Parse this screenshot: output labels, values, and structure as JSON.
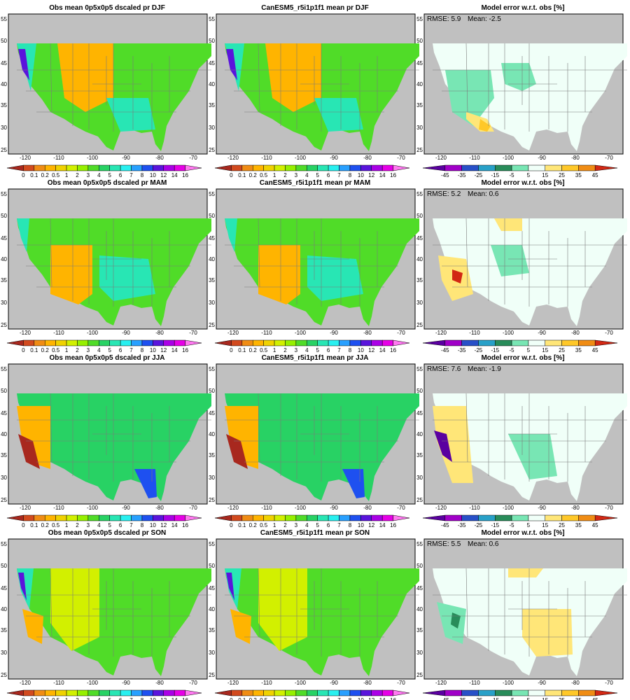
{
  "rows": [
    {
      "season": "DJF",
      "titles": [
        "Obs mean 0p5x0p5 dscaled pr DJF",
        "CanESM5_r5i1p1f1 mean pr DJF",
        "Model error w.r.t. obs [%]"
      ],
      "rmse_text": "RMSE: 5.9",
      "mean_text": "Mean: -2.5"
    },
    {
      "season": "MAM",
      "titles": [
        "Obs mean 0p5x0p5 dscaled pr MAM",
        "CanESM5_r5i1p1f1 mean pr MAM",
        "Model error w.r.t. obs [%]"
      ],
      "rmse_text": "RMSE: 5.2",
      "mean_text": "Mean: 0.6"
    },
    {
      "season": "JJA",
      "titles": [
        "Obs mean 0p5x0p5 dscaled pr JJA",
        "CanESM5_r5i1p1f1 mean pr JJA",
        "Model error w.r.t. obs [%]"
      ],
      "rmse_text": "RMSE: 7.6",
      "mean_text": "Mean: -1.9"
    },
    {
      "season": "SON",
      "titles": [
        "Obs mean 0p5x0p5 dscaled pr SON",
        "CanESM5_r5i1p1f1 mean pr SON",
        "Model error w.r.t. obs [%]"
      ],
      "rmse_text": "RMSE: 5.5",
      "mean_text": "Mean: 0.6"
    }
  ],
  "lon_ticks": [
    "-120",
    "-110",
    "-100",
    "-90",
    "-80",
    "-70"
  ],
  "lat_ticks": [
    "55",
    "50",
    "45",
    "40",
    "35",
    "30",
    "25"
  ],
  "precip_colorbar": {
    "labels": [
      "0",
      "0.1",
      "0.2",
      "0.5",
      "1",
      "2",
      "3",
      "4",
      "5",
      "6",
      "7",
      "8",
      "10",
      "12",
      "14",
      "16"
    ],
    "colors": [
      "#a8281e",
      "#d24a1e",
      "#f08c14",
      "#ffb400",
      "#f0d200",
      "#d2f000",
      "#96f000",
      "#50dc28",
      "#28d264",
      "#28e6b4",
      "#28f0f0",
      "#28a0ff",
      "#1e50f0",
      "#5a14dc",
      "#aa00e6",
      "#e600e6",
      "#ff78f0"
    ]
  },
  "error_colorbar": {
    "labels": [
      "-45",
      "-35",
      "-25",
      "-15",
      "-5",
      "5",
      "15",
      "25",
      "35",
      "45"
    ],
    "colors": [
      "#5a00a0",
      "#a000c8",
      "#2850c8",
      "#28a0c8",
      "#288c5a",
      "#78e6b4",
      "#f0fff8",
      "#ffe678",
      "#ffc828",
      "#f08c14",
      "#d22814"
    ]
  },
  "map_colors": {
    "land_mask": "#c0c0c0",
    "borders": "#7a7a7a",
    "obs_dry": "#ffb400",
    "obs_mid": "#50dc28",
    "obs_wet": "#28e6b4"
  }
}
